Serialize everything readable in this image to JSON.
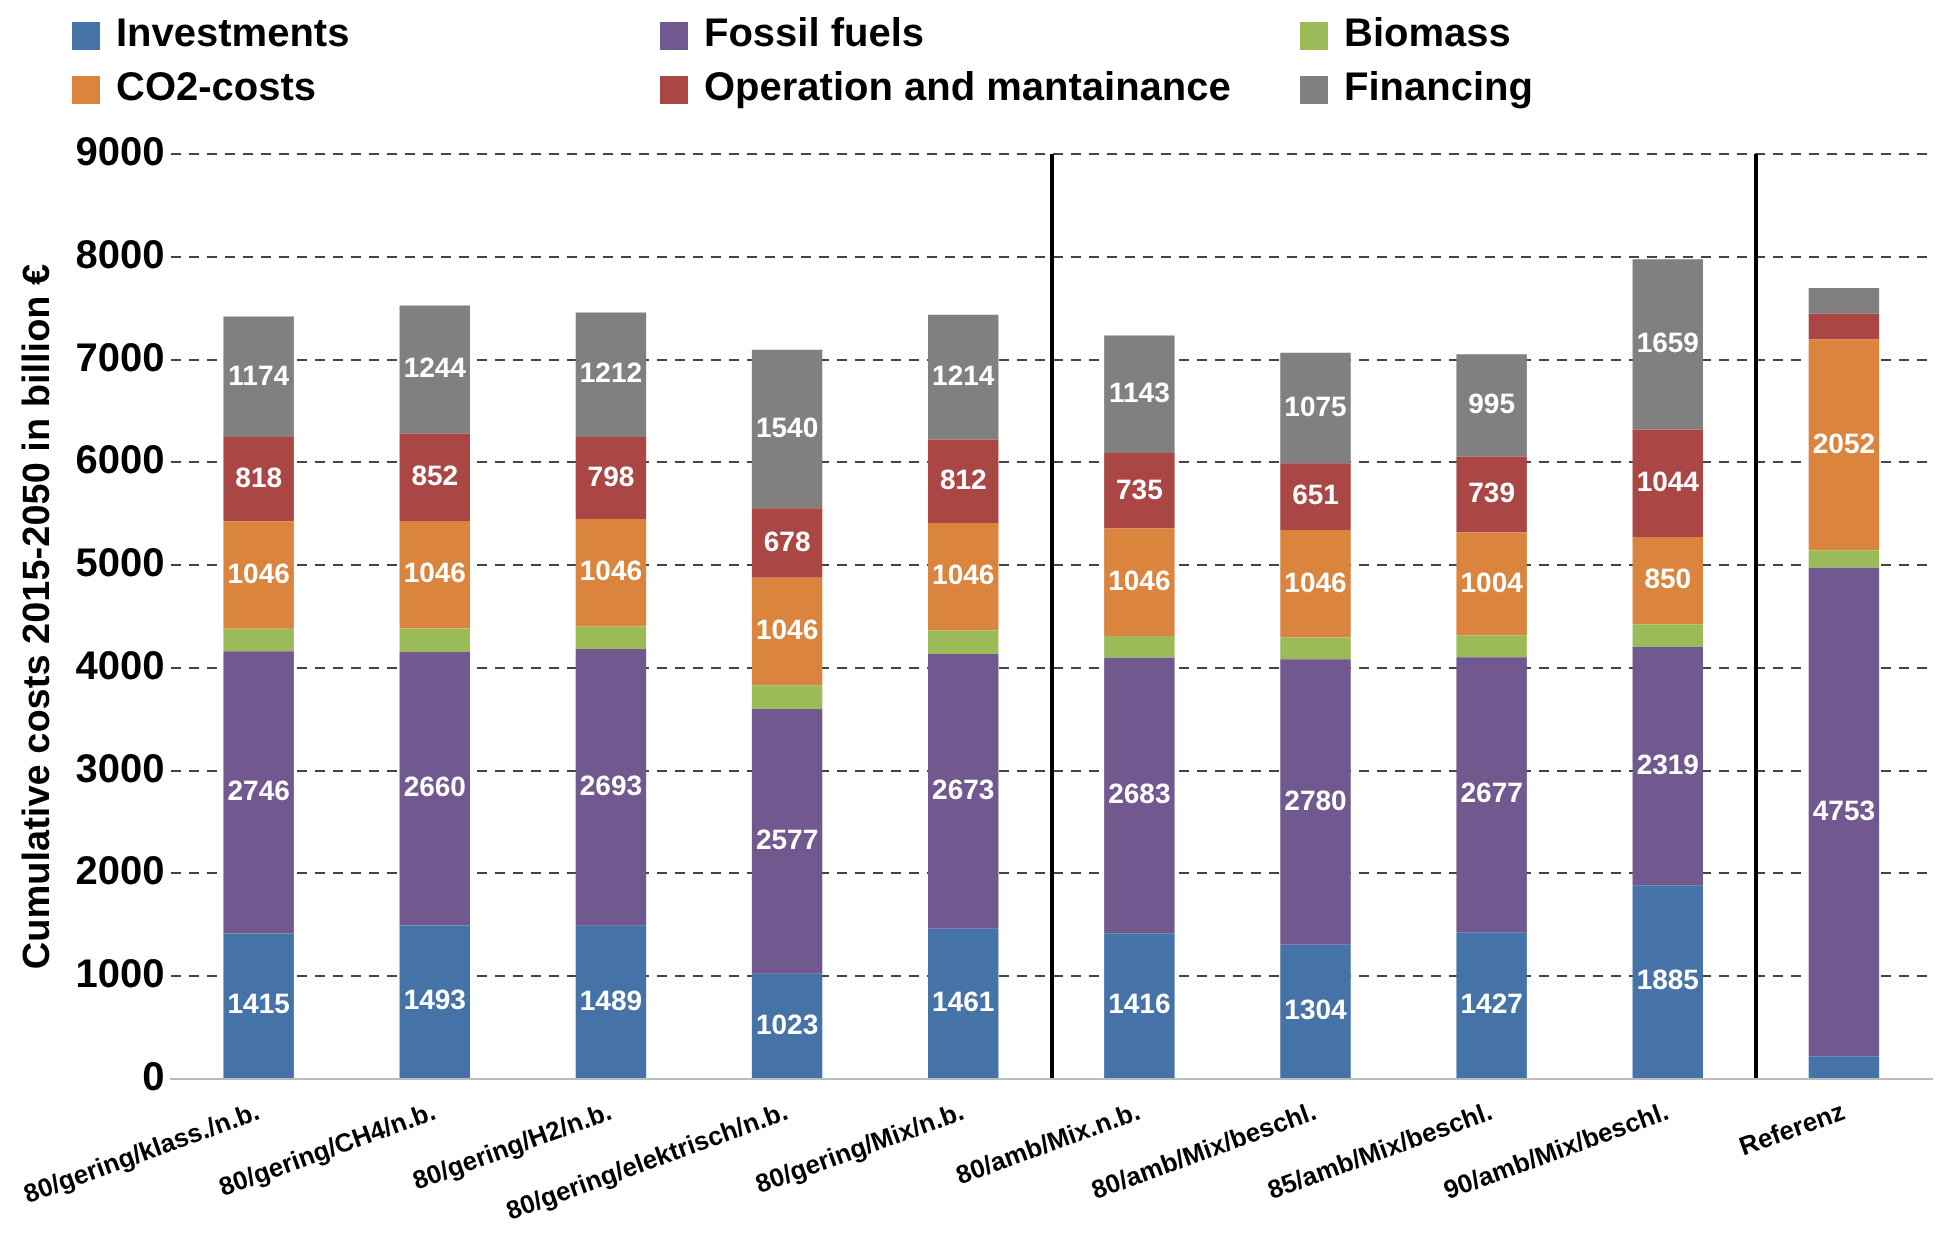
{
  "chart_data": {
    "type": "bar",
    "stacked": true,
    "ylabel": "Cumulative costs 2015-2050 in billion €",
    "categories": [
      "80/gering/klass./n.b.",
      "80/gering/CH4/n.b.",
      "80/gering/H2/n.b.",
      "80/gering/elektrisch/n.b.",
      "80/gering/Mix/n.b.",
      "80/amb/Mix.n.b.",
      "80/amb/Mix/beschl.",
      "85/amb/Mix/beschl.",
      "90/amb/Mix/beschl.",
      "Referenz"
    ],
    "series": [
      {
        "name": "Investments",
        "color": "#4572a7",
        "values": [
          1415,
          1493,
          1489,
          1023,
          1461,
          1416,
          1304,
          1427,
          1885,
          220
        ],
        "value_labels": [
          "1415",
          "1493",
          "1489",
          "1023",
          "1461",
          "1416",
          "1304",
          "1427",
          "1885",
          null
        ]
      },
      {
        "name": "Fossil fuels",
        "color": "#71588f",
        "values": [
          2746,
          2660,
          2693,
          2577,
          2673,
          2683,
          2780,
          2677,
          2319,
          4753
        ],
        "value_labels": [
          "2746",
          "2660",
          "2693",
          "2577",
          "2673",
          "2683",
          "2780",
          "2677",
          "2319",
          "4753"
        ]
      },
      {
        "name": "Biomass",
        "color": "#9bbb59",
        "values": [
          220,
          230,
          220,
          230,
          230,
          210,
          210,
          210,
          220,
          170
        ]
      },
      {
        "name": "CO2-costs",
        "color": "#db843d",
        "values": [
          1046,
          1046,
          1046,
          1046,
          1046,
          1046,
          1046,
          1004,
          850,
          2052
        ],
        "value_labels": [
          "1046",
          "1046",
          "1046",
          "1046",
          "1046",
          "1046",
          "1046",
          "1004",
          "850",
          "2052"
        ]
      },
      {
        "name": "Operation and mantainance",
        "color": "#aa4643",
        "values": [
          818,
          852,
          798,
          678,
          812,
          735,
          651,
          739,
          1044,
          250
        ],
        "value_labels": [
          "818",
          "852",
          "798",
          "678",
          "812",
          "735",
          "651",
          "739",
          "1044",
          null
        ]
      },
      {
        "name": "Financing",
        "color": "#808080",
        "values": [
          1174,
          1244,
          1212,
          1540,
          1214,
          1143,
          1075,
          995,
          1659,
          250
        ],
        "value_labels": [
          "1174",
          "1244",
          "1212",
          "1540",
          "1214",
          "1143",
          "1075",
          "995",
          "1659",
          null
        ]
      }
    ],
    "ylim": [
      0,
      9000
    ],
    "yticks": [
      0,
      1000,
      2000,
      3000,
      4000,
      5000,
      6000,
      7000,
      8000,
      9000
    ],
    "grid": "y",
    "legend": "top"
  }
}
